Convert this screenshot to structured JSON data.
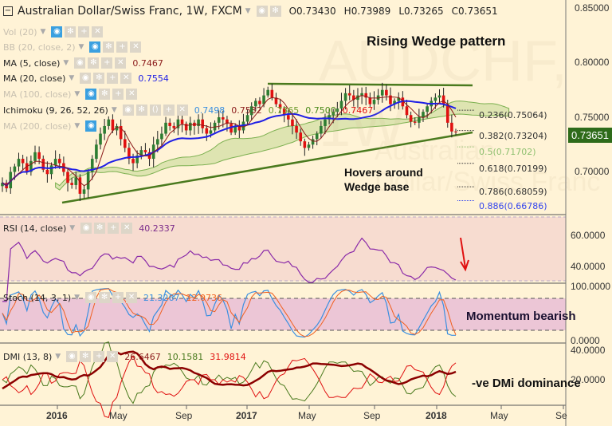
{
  "header": {
    "title": "Australian Dollar/Swiss Franc, 1W, FXCM",
    "open": "O0.73430",
    "high": "H0.73989",
    "low": "L0.73265",
    "close": "C0.73651"
  },
  "watermark": "AUDCHF, 1W",
  "watermark_sub": "Australian Dollar/Swiss Franc",
  "indicators": {
    "vol": {
      "label": "Vol (20)"
    },
    "bb": {
      "label": "BB (20, close, 2)"
    },
    "ma5": {
      "label": "MA (5, close)",
      "value": "0.7467"
    },
    "ma20": {
      "label": "MA (20, close)",
      "value": "0.7554"
    },
    "ma100": {
      "label": "MA (100, close)"
    },
    "ichimoku": {
      "label": "Ichimoku (9, 26, 52, 26)",
      "values": [
        "0.7498",
        "0.7532",
        "0.7365",
        "0.7500",
        "0.7467"
      ]
    },
    "ma200": {
      "label": "MA (200, close)"
    }
  },
  "annotations": {
    "pattern": "Rising Wedge pattern",
    "hover": "Hovers around",
    "hover2": "Wedge base",
    "momentum": "Momentum bearish",
    "dmi": "-ve DMi dominance"
  },
  "fib_levels": [
    {
      "label": "0.236(0.75064)",
      "price": 0.75064,
      "color": "#333333"
    },
    {
      "label": "0.382(0.73204)",
      "price": 0.73204,
      "color": "#333333"
    },
    {
      "label": "0.5(0.71702)",
      "price": 0.71702,
      "color": "#8fc070"
    },
    {
      "label": "0.618(0.70199)",
      "price": 0.70199,
      "color": "#333333"
    },
    {
      "label": "0.786(0.68059)",
      "price": 0.68059,
      "color": "#333333"
    },
    {
      "label": "0.886(0.66786)",
      "price": 0.66786,
      "color": "#3344ee"
    }
  ],
  "price_axis": {
    "ticks": [
      "0.85000",
      "0.80000",
      "0.75000",
      "0.70000"
    ],
    "current": "0.73651"
  },
  "rsi": {
    "label": "RSI (14, close)",
    "value": "40.2337",
    "ticks": [
      "60.0000",
      "40.0000"
    ]
  },
  "stoch": {
    "label": "Stoch (14, 3, 1)",
    "k": "21.3267",
    "d": "12.0736",
    "ticks": [
      "100.0000",
      "0.0000"
    ]
  },
  "dmi": {
    "label": "DMI (13, 8)",
    "adx": "26.6467",
    "plus": "10.1581",
    "minus": "31.9814",
    "ticks": [
      "40.0000",
      "20.0000"
    ]
  },
  "time_axis": [
    "2016",
    "May",
    "Sep",
    "2017",
    "May",
    "Sep",
    "2018",
    "May",
    "Se"
  ],
  "colors": {
    "up": "#2e7d32",
    "down": "#e01010",
    "ma20": "#1f1fe6",
    "ma5": "#8b1a1a",
    "trend": "#4a7a1e",
    "bg": "#fff3d6"
  },
  "chart_data": {
    "type": "candlestick",
    "note": "approximate weekly closes, AUD/CHF, Sep 2015 - Feb 2018",
    "closes": [
      0.69,
      0.685,
      0.7,
      0.705,
      0.712,
      0.708,
      0.7,
      0.71,
      0.718,
      0.712,
      0.702,
      0.698,
      0.706,
      0.712,
      0.708,
      0.7,
      0.69,
      0.688,
      0.695,
      0.68,
      0.684,
      0.7,
      0.712,
      0.725,
      0.735,
      0.742,
      0.748,
      0.738,
      0.742,
      0.73,
      0.722,
      0.712,
      0.708,
      0.715,
      0.72,
      0.718,
      0.712,
      0.725,
      0.73,
      0.735,
      0.745,
      0.742,
      0.74,
      0.748,
      0.744,
      0.738,
      0.745,
      0.742,
      0.748,
      0.74,
      0.735,
      0.738,
      0.745,
      0.75,
      0.748,
      0.744,
      0.736,
      0.742,
      0.738,
      0.746,
      0.752,
      0.76,
      0.765,
      0.762,
      0.77,
      0.775,
      0.768,
      0.762,
      0.758,
      0.752,
      0.748,
      0.742,
      0.736,
      0.728,
      0.722,
      0.725,
      0.73,
      0.735,
      0.742,
      0.748,
      0.752,
      0.755,
      0.758,
      0.765,
      0.772,
      0.77,
      0.766,
      0.77,
      0.772,
      0.768,
      0.762,
      0.766,
      0.77,
      0.775,
      0.77,
      0.762,
      0.765,
      0.768,
      0.76,
      0.752,
      0.746,
      0.745,
      0.75,
      0.755,
      0.76,
      0.765,
      0.768,
      0.77,
      0.762,
      0.745,
      0.737,
      0.7365
    ]
  }
}
